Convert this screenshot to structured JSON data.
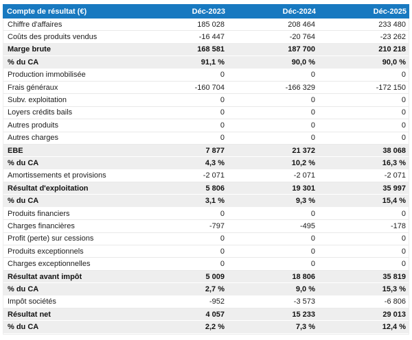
{
  "title": "Compte de résultat (€)",
  "columns": [
    "Déc-2023",
    "Déc-2024",
    "Déc-2025"
  ],
  "rows": [
    {
      "label": "Chiffre d'affaires",
      "values": [
        "185 028",
        "208 464",
        "233 480"
      ],
      "em": false
    },
    {
      "label": "Coûts des produits vendus",
      "values": [
        "-16 447",
        "-20 764",
        "-23 262"
      ],
      "em": false
    },
    {
      "label": "Marge brute",
      "values": [
        "168 581",
        "187 700",
        "210 218"
      ],
      "em": true
    },
    {
      "label": "% du CA",
      "values": [
        "91,1 %",
        "90,0 %",
        "90,0 %"
      ],
      "em": true
    },
    {
      "label": "Production immobilisée",
      "values": [
        "0",
        "0",
        "0"
      ],
      "em": false
    },
    {
      "label": "Frais généraux",
      "values": [
        "-160 704",
        "-166 329",
        "-172 150"
      ],
      "em": false
    },
    {
      "label": "Subv. exploitation",
      "values": [
        "0",
        "0",
        "0"
      ],
      "em": false
    },
    {
      "label": "Loyers crédits bails",
      "values": [
        "0",
        "0",
        "0"
      ],
      "em": false
    },
    {
      "label": "Autres produits",
      "values": [
        "0",
        "0",
        "0"
      ],
      "em": false
    },
    {
      "label": "Autres charges",
      "values": [
        "0",
        "0",
        "0"
      ],
      "em": false
    },
    {
      "label": "EBE",
      "values": [
        "7 877",
        "21 372",
        "38 068"
      ],
      "em": true
    },
    {
      "label": "% du CA",
      "values": [
        "4,3 %",
        "10,2 %",
        "16,3 %"
      ],
      "em": true
    },
    {
      "label": "Amortissements et provisions",
      "values": [
        "-2 071",
        "-2 071",
        "-2 071"
      ],
      "em": false
    },
    {
      "label": "Résultat d'exploitation",
      "values": [
        "5 806",
        "19 301",
        "35 997"
      ],
      "em": true
    },
    {
      "label": "% du CA",
      "values": [
        "3,1 %",
        "9,3 %",
        "15,4 %"
      ],
      "em": true
    },
    {
      "label": "Produits financiers",
      "values": [
        "0",
        "0",
        "0"
      ],
      "em": false
    },
    {
      "label": "Charges financières",
      "values": [
        "-797",
        "-495",
        "-178"
      ],
      "em": false
    },
    {
      "label": "Profit (perte) sur cessions",
      "values": [
        "0",
        "0",
        "0"
      ],
      "em": false
    },
    {
      "label": "Produits exceptionnels",
      "values": [
        "0",
        "0",
        "0"
      ],
      "em": false
    },
    {
      "label": "Charges exceptionnelles",
      "values": [
        "0",
        "0",
        "0"
      ],
      "em": false
    },
    {
      "label": "Résultat avant impôt",
      "values": [
        "5 009",
        "18 806",
        "35 819"
      ],
      "em": true
    },
    {
      "label": "% du CA",
      "values": [
        "2,7 %",
        "9,0 %",
        "15,3 %"
      ],
      "em": true
    },
    {
      "label": "Impôt sociétés",
      "values": [
        "-952",
        "-3 573",
        "-6 806"
      ],
      "em": false
    },
    {
      "label": "Résultat net",
      "values": [
        "4 057",
        "15 233",
        "29 013"
      ],
      "em": true
    },
    {
      "label": "% du CA",
      "values": [
        "2,2 %",
        "7,3 %",
        "12,4 %"
      ],
      "em": true
    }
  ],
  "colors": {
    "header_bg": "#1879c0",
    "header_text": "#ffffff",
    "row_bg": "#ffffff",
    "summary_row_bg": "#eeeeee",
    "text": "#1b1b1b",
    "divider": "#e9e9e9"
  },
  "chart_data": {
    "type": "table",
    "title": "Compte de résultat (€)",
    "columns": [
      "Compte de résultat (€)",
      "Déc-2023",
      "Déc-2024",
      "Déc-2025"
    ],
    "rows": [
      [
        "Chiffre d'affaires",
        "185 028",
        "208 464",
        "233 480"
      ],
      [
        "Coûts des produits vendus",
        "-16 447",
        "-20 764",
        "-23 262"
      ],
      [
        "Marge brute",
        "168 581",
        "187 700",
        "210 218"
      ],
      [
        "% du CA",
        "91,1 %",
        "90,0 %",
        "90,0 %"
      ],
      [
        "Production immobilisée",
        "0",
        "0",
        "0"
      ],
      [
        "Frais généraux",
        "-160 704",
        "-166 329",
        "-172 150"
      ],
      [
        "Subv. exploitation",
        "0",
        "0",
        "0"
      ],
      [
        "Loyers crédits bails",
        "0",
        "0",
        "0"
      ],
      [
        "Autres produits",
        "0",
        "0",
        "0"
      ],
      [
        "Autres charges",
        "0",
        "0",
        "0"
      ],
      [
        "EBE",
        "7 877",
        "21 372",
        "38 068"
      ],
      [
        "% du CA",
        "4,3 %",
        "10,2 %",
        "16,3 %"
      ],
      [
        "Amortissements et provisions",
        "-2 071",
        "-2 071",
        "-2 071"
      ],
      [
        "Résultat d'exploitation",
        "5 806",
        "19 301",
        "35 997"
      ],
      [
        "% du CA",
        "3,1 %",
        "9,3 %",
        "15,4 %"
      ],
      [
        "Produits financiers",
        "0",
        "0",
        "0"
      ],
      [
        "Charges financières",
        "-797",
        "-495",
        "-178"
      ],
      [
        "Profit (perte) sur cessions",
        "0",
        "0",
        "0"
      ],
      [
        "Produits exceptionnels",
        "0",
        "0",
        "0"
      ],
      [
        "Charges exceptionnelles",
        "0",
        "0",
        "0"
      ],
      [
        "Résultat avant impôt",
        "5 009",
        "18 806",
        "35 819"
      ],
      [
        "% du CA",
        "2,7 %",
        "9,0 %",
        "15,3 %"
      ],
      [
        "Impôt sociétés",
        "-952",
        "-3 573",
        "-6 806"
      ],
      [
        "Résultat net",
        "4 057",
        "15 233",
        "29 013"
      ],
      [
        "% du CA",
        "2,2 %",
        "7,3 %",
        "12,4 %"
      ]
    ]
  }
}
